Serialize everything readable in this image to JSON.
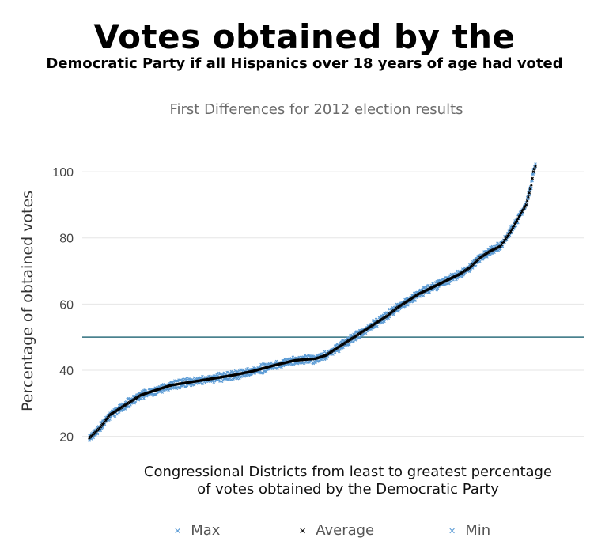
{
  "title": "Votes obtained by the",
  "subtitle": "Democratic Party if all Hispanics over 18 years of age had voted",
  "chart_data": {
    "type": "scatter",
    "title": "First Differences for 2012 election results",
    "xlabel_lines": [
      "Congressional Districts from least to greatest percentage",
      "of votes obtained by the Democratic Party"
    ],
    "ylabel": "Percentage of obtained votes",
    "ylim": [
      18,
      106
    ],
    "yticks": [
      20,
      40,
      60,
      80,
      100
    ],
    "grid": true,
    "reference_line": 50,
    "legend_position": "bottom",
    "n_districts": 435,
    "curve": [
      [
        0,
        19.5
      ],
      [
        10,
        22.5
      ],
      [
        20,
        26.5
      ],
      [
        30,
        28.5
      ],
      [
        40,
        30.5
      ],
      [
        50,
        32.5
      ],
      [
        60,
        33.5
      ],
      [
        70,
        34.5
      ],
      [
        80,
        35.5
      ],
      [
        100,
        36.5
      ],
      [
        120,
        37.5
      ],
      [
        140,
        38.5
      ],
      [
        160,
        39.8
      ],
      [
        180,
        41.5
      ],
      [
        200,
        43
      ],
      [
        220,
        43.5
      ],
      [
        230,
        44.5
      ],
      [
        240,
        46.5
      ],
      [
        250,
        48.5
      ],
      [
        260,
        50.5
      ],
      [
        270,
        52.5
      ],
      [
        280,
        54.5
      ],
      [
        290,
        56.5
      ],
      [
        300,
        59
      ],
      [
        310,
        61
      ],
      [
        320,
        63
      ],
      [
        330,
        64.5
      ],
      [
        340,
        66
      ],
      [
        350,
        67.5
      ],
      [
        360,
        69
      ],
      [
        370,
        71
      ],
      [
        380,
        74
      ],
      [
        390,
        76
      ],
      [
        400,
        77.5
      ],
      [
        410,
        82
      ],
      [
        420,
        87.5
      ],
      [
        425,
        90
      ],
      [
        430,
        96
      ],
      [
        432,
        100
      ],
      [
        435,
        102.5
      ]
    ],
    "series": [
      {
        "name": "Max",
        "color": "#5b9bd5",
        "offset": 0.8
      },
      {
        "name": "Average",
        "color": "#000000",
        "offset": 0
      },
      {
        "name": "Min",
        "color": "#5b9bd5",
        "offset": -0.8
      }
    ]
  }
}
